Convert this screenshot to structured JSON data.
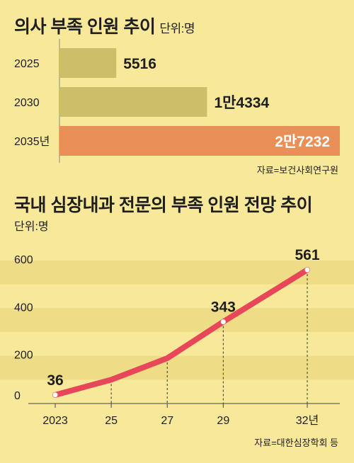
{
  "bar_section": {
    "title": "의사 부족 인원 추이",
    "unit": "단위:명",
    "source": "자료=보건사회연구원"
  },
  "line_section": {
    "title": "국내 심장내과 전문의 부족 인원 전망 추이",
    "unit": "단위:명",
    "source": "자료=대한심장학회 등"
  },
  "colors": {
    "background": "#f8e89a",
    "bar": "#cbbf6a",
    "bar_highlight": "#e98f57",
    "band": "#efdc86",
    "line": "#e8475a"
  },
  "chart_data": [
    {
      "type": "bar",
      "orientation": "horizontal",
      "categories": [
        "2025",
        "2030",
        "2035년"
      ],
      "values": [
        5516,
        14334,
        27232
      ],
      "value_labels": [
        "5516",
        "1만4334",
        "2만7232"
      ],
      "highlight_index": 2,
      "xlim": [
        0,
        27232
      ]
    },
    {
      "type": "line",
      "x": [
        2023,
        2025,
        2027,
        2029,
        2032
      ],
      "x_tick_labels": [
        "2023",
        "25",
        "27",
        "29",
        "32년"
      ],
      "values": [
        36,
        100,
        190,
        343,
        561
      ],
      "point_labels": {
        "0": "36",
        "3": "343",
        "4": "561"
      },
      "y_ticks": [
        "0",
        "200",
        "400",
        "600"
      ],
      "ylim": [
        0,
        600
      ]
    }
  ]
}
